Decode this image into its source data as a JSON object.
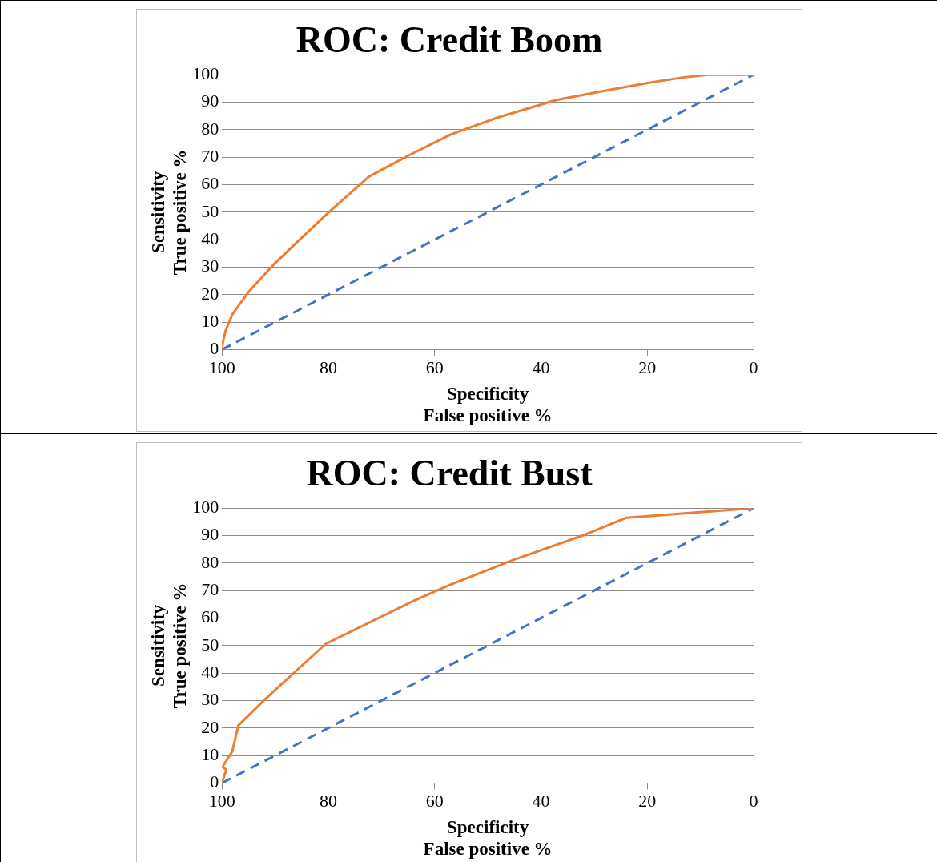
{
  "chart_data": [
    {
      "type": "line",
      "title": "ROC: Credit Boom",
      "xlabel": "Specificity\nFalse positive %",
      "ylabel": "Sensitivity\nTrue positive %",
      "xlim": [
        100,
        0
      ],
      "xticks": [
        100,
        80,
        60,
        40,
        20,
        0
      ],
      "ylim": [
        0,
        100
      ],
      "yticks": [
        0,
        10,
        20,
        30,
        40,
        50,
        60,
        70,
        80,
        90,
        100
      ],
      "grid": "y",
      "legend": false,
      "marker": "none",
      "series": [
        {
          "color": "#ed7d31",
          "line_style": "solid",
          "x": [
            100,
            99.8,
            99.3,
            98,
            95,
            90,
            85.4,
            79.9,
            72.3,
            64.8,
            56.9,
            48.2,
            37.1,
            27.6,
            19.7,
            13.3,
            8.6,
            0
          ],
          "values": [
            0,
            3,
            7,
            13,
            21,
            31.5,
            40,
            50,
            63,
            70.7,
            78.3,
            84.4,
            90.8,
            94.3,
            97.1,
            99,
            100,
            100
          ]
        },
        {
          "color": "#4472c4",
          "line_style": "dashed",
          "x": [
            100,
            0
          ],
          "values": [
            0,
            100
          ]
        }
      ]
    },
    {
      "type": "line",
      "title": "ROC: Credit Bust",
      "xlabel": "Specificity\nFalse positive %",
      "ylabel": "Sensitivity\nTrue positive %",
      "xlim": [
        100,
        0
      ],
      "xticks": [
        100,
        80,
        60,
        40,
        20,
        0
      ],
      "ylim": [
        0,
        100
      ],
      "yticks": [
        0,
        10,
        20,
        30,
        40,
        50,
        60,
        70,
        80,
        90,
        100
      ],
      "grid": "y",
      "legend": false,
      "marker": "none",
      "series": [
        {
          "color": "#ed7d31",
          "line_style": "solid",
          "x": [
            100,
            99.2,
            99.9,
            98.1,
            96.9,
            91.7,
            80.5,
            64,
            57.6,
            45.7,
            32.2,
            23.9,
            0
          ],
          "values": [
            0,
            4.8,
            5.9,
            11.4,
            21,
            30.8,
            50.6,
            66.2,
            71.7,
            80.8,
            90,
            96.5,
            100
          ]
        },
        {
          "color": "#4472c4",
          "line_style": "dashed",
          "x": [
            100,
            0
          ],
          "values": [
            0,
            100
          ]
        }
      ]
    }
  ]
}
